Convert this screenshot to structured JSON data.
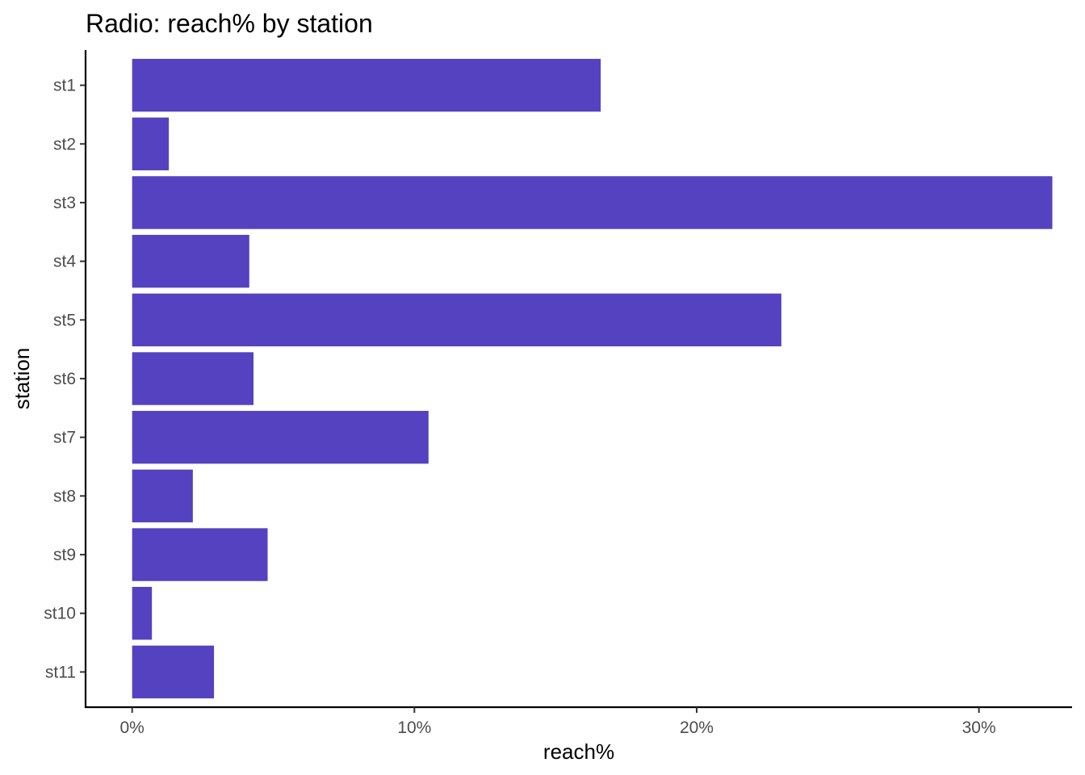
{
  "chart_data": {
    "type": "bar",
    "orientation": "horizontal",
    "title": "Radio: reach% by station",
    "xlabel": "reach%",
    "ylabel": "station",
    "categories": [
      "st1",
      "st2",
      "st3",
      "st4",
      "st5",
      "st6",
      "st7",
      "st8",
      "st9",
      "st10",
      "st11"
    ],
    "values": [
      16.6,
      1.3,
      32.6,
      4.15,
      23.0,
      4.3,
      10.5,
      2.15,
      4.8,
      0.7,
      2.9
    ],
    "value_unit": "%",
    "xlim": [
      -1.65,
      33.3
    ],
    "xticks": [
      0,
      10,
      20,
      30
    ],
    "xtick_labels": [
      "0%",
      "10%",
      "20%",
      "30%"
    ],
    "bar_color": "#5442c1",
    "grid": false,
    "legend": "none"
  }
}
